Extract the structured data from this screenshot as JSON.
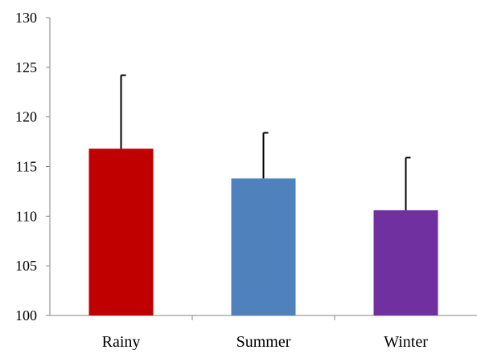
{
  "chart_data": {
    "type": "bar",
    "title": "",
    "xlabel": "",
    "ylabel": "",
    "categories": [
      "Rainy",
      "Summer",
      "Winter"
    ],
    "values": [
      116.8,
      113.8,
      110.6
    ],
    "error_upper": [
      7.4,
      4.6,
      5.3
    ],
    "ylim": [
      100,
      130
    ],
    "yticks": [
      100,
      105,
      110,
      115,
      120,
      125,
      130
    ],
    "colors": [
      "#C00000",
      "#4F81BD",
      "#7030A0"
    ],
    "grid": false,
    "legend": "none"
  }
}
